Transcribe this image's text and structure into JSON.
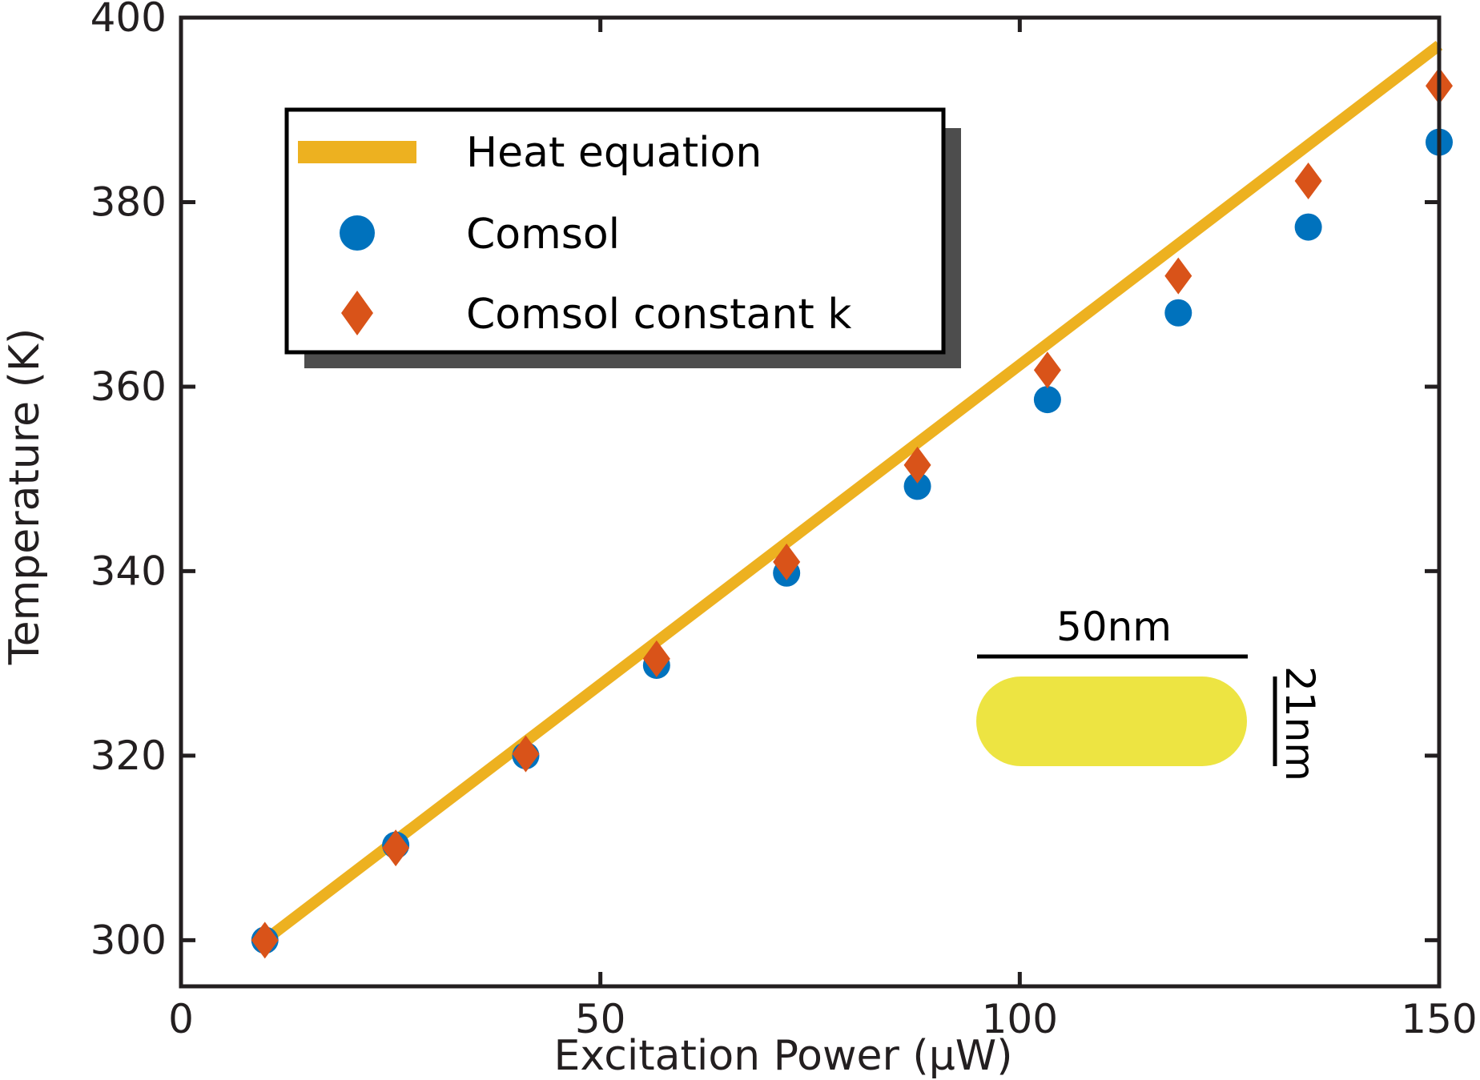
{
  "chart_data": {
    "type": "scatter",
    "title": "",
    "xlabel": "Excitation Power (μW)",
    "ylabel": "Temperature (K)",
    "xlim": [
      0,
      150
    ],
    "ylim": [
      295,
      400
    ],
    "xticks": [
      0,
      50,
      100,
      150
    ],
    "yticks": [
      300,
      320,
      340,
      360,
      380,
      400
    ],
    "grid": false,
    "legend_position": "top-left",
    "series": [
      {
        "name": "Heat equation",
        "kind": "line",
        "color": "#edb120",
        "x": [
          10,
          150
        ],
        "y": [
          300,
          397
        ]
      },
      {
        "name": "Comsol",
        "kind": "scatter",
        "marker": "circle",
        "color": "#0072bd",
        "x": [
          10,
          25.6,
          41.1,
          56.7,
          72.2,
          87.8,
          103.3,
          118.9,
          134.4,
          150
        ],
        "y": [
          300,
          310.3,
          320,
          329.8,
          339.8,
          349.2,
          358.6,
          368,
          377.3,
          386.5
        ]
      },
      {
        "name": "Comsol constant k",
        "kind": "scatter",
        "marker": "diamond",
        "color": "#d95319",
        "x": [
          10,
          25.6,
          41.1,
          56.7,
          72.2,
          87.8,
          103.3,
          118.9,
          134.4,
          150
        ],
        "y": [
          300,
          310,
          320.2,
          330.5,
          341,
          351.5,
          361.8,
          372,
          382.3,
          392.6
        ]
      }
    ],
    "inset": {
      "length_label": "50nm",
      "width_label": "21nm",
      "rod_color": "#ede442"
    }
  }
}
